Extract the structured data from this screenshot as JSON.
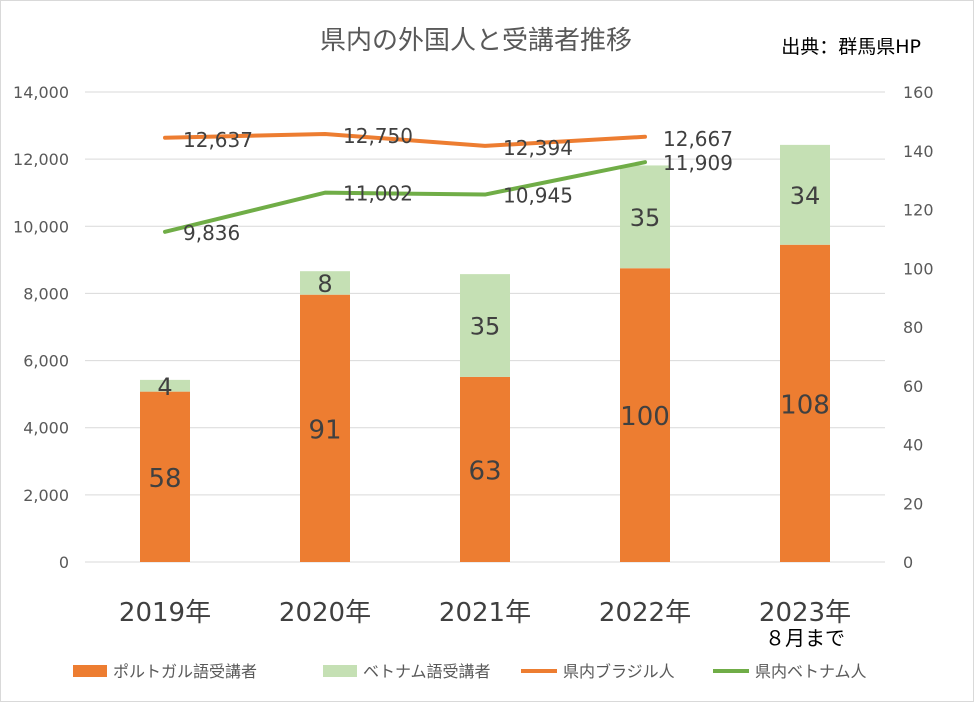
{
  "chart_data": {
    "type": "bar",
    "title": "県内の外国人と受講者推移",
    "source": "出典：群馬県HP",
    "categories": [
      "2019年",
      "2020年",
      "2021年",
      "2022年",
      "2023年"
    ],
    "category_note": "８月まで",
    "left_axis": {
      "min": 0,
      "max": 14000,
      "ticks": [
        "0",
        "2,000",
        "4,000",
        "6,000",
        "8,000",
        "10,000",
        "12,000",
        "14,000"
      ]
    },
    "right_axis": {
      "min": 0,
      "max": 160,
      "ticks": [
        "0",
        "20",
        "40",
        "60",
        "80",
        "100",
        "120",
        "140",
        "160"
      ]
    },
    "bar_series": [
      {
        "name": "ポルトガル語受講者",
        "values": [
          58,
          91,
          63,
          100,
          108
        ],
        "labels": [
          "58",
          "91",
          "63",
          "100",
          "108"
        ],
        "color": "#ed7d31"
      },
      {
        "name": "ベトナム語受講者",
        "values": [
          4,
          8,
          35,
          35,
          34
        ],
        "labels": [
          "4",
          "8",
          "35",
          "35",
          "34"
        ],
        "color": "#c5e0b4"
      }
    ],
    "line_series": [
      {
        "name": "県内ブラジル人",
        "values": [
          12637,
          12750,
          12394,
          12667
        ],
        "labels": [
          "12,637",
          "12,750",
          "12,394",
          "12,667"
        ],
        "color": "#ed7d31"
      },
      {
        "name": "県内ベトナム人",
        "values": [
          9836,
          11002,
          10945,
          11909
        ],
        "labels": [
          "9,836",
          "11,002",
          "10,945",
          "11,909"
        ],
        "color": "#70ad47"
      }
    ],
    "grid": true,
    "legend": "bottom"
  }
}
